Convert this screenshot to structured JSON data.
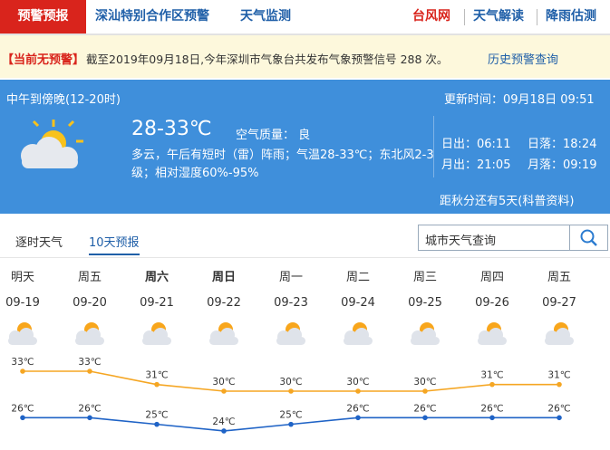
{
  "nav": {
    "tabs": [
      "预警预报",
      "深汕特别合作区预警",
      "天气监测"
    ],
    "links": [
      "台风网",
      "天气解读",
      "降雨估测"
    ]
  },
  "alert": {
    "status": "【当前无预警】",
    "text": "截至2019年09月18日,今年深圳市气象台共发布气象预警信号 288 次。",
    "link": "历史预警查询"
  },
  "now": {
    "period": "中午到傍晚(12-20时)",
    "updated": "更新时间：09月18日 09:51",
    "temp": "28-33℃",
    "air": "空气质量： 良",
    "desc": "多云，午后有短时（雷）阵雨；气温28-33℃；东北风2-3级；相对湿度60%-95%",
    "sunrise": "日出：06:11",
    "sunset": "日落：18:24",
    "moonrise": "月出：21:05",
    "moonset": "月落：09:19",
    "note": "距秋分还有5天(科普资料)"
  },
  "tabs": [
    "逐时天气",
    "10天预报"
  ],
  "search": "城市天气查询",
  "forecast": {
    "days": [
      "明天",
      "周五",
      "周六",
      "周日",
      "周一",
      "周二",
      "周三",
      "周四",
      "周五"
    ],
    "dates": [
      "09-19",
      "09-20",
      "09-21",
      "09-22",
      "09-23",
      "09-24",
      "09-25",
      "09-26",
      "09-27"
    ],
    "high": [
      33,
      33,
      31,
      30,
      30,
      30,
      30,
      31,
      31
    ],
    "high_labels": [
      "33℃",
      "33℃",
      "31℃",
      "30℃",
      "30℃",
      "30℃",
      "30℃",
      "31℃",
      "31℃"
    ],
    "low": [
      26,
      26,
      25,
      24,
      25,
      26,
      26,
      26,
      26
    ],
    "low_labels": [
      "26℃",
      "26℃",
      "25℃",
      "24℃",
      "25℃",
      "26℃",
      "26℃",
      "26℃",
      "26℃"
    ],
    "high_color": "#f5a623",
    "low_color": "#1f63c6"
  }
}
